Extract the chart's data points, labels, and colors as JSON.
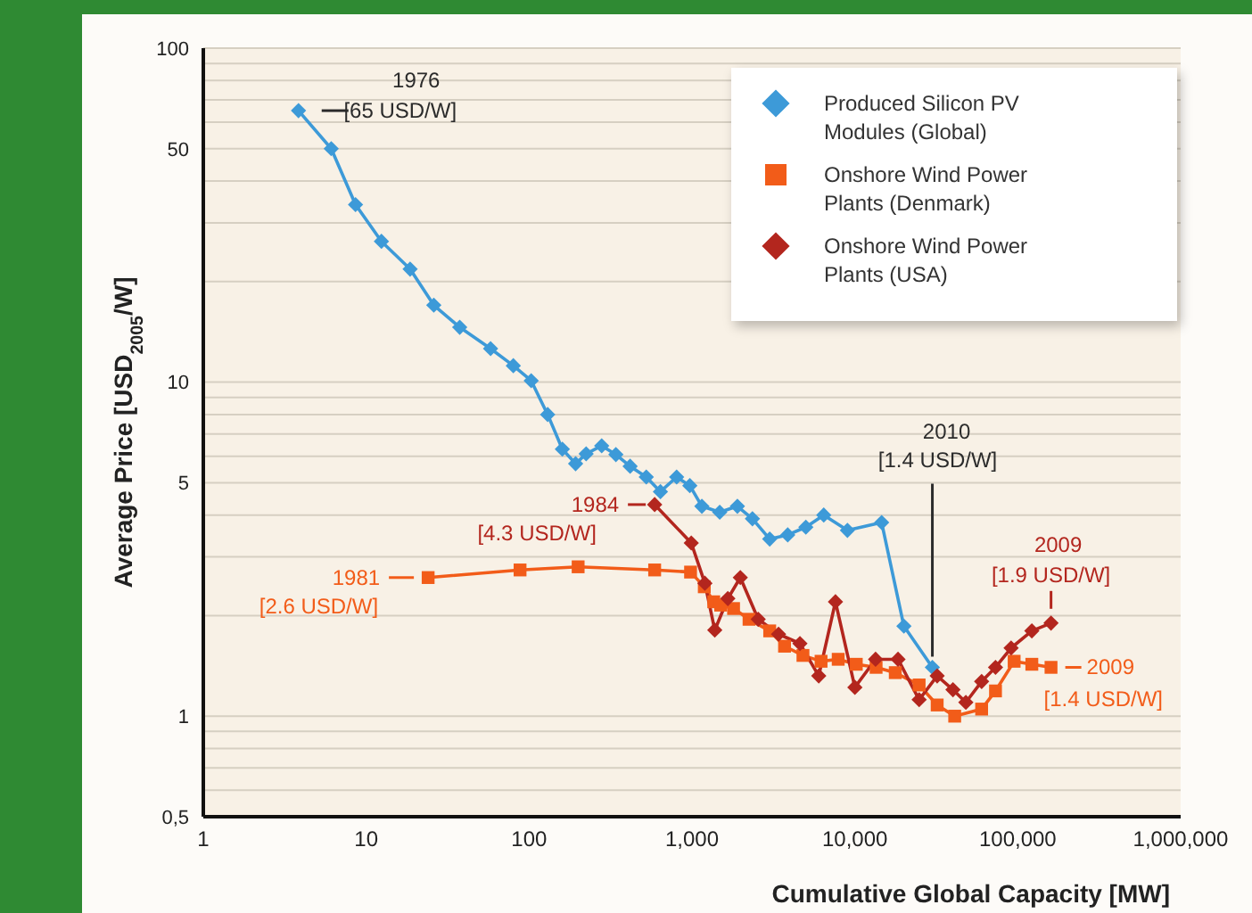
{
  "chart_data": {
    "type": "line",
    "xlabel": "Cumulative Global Capacity [MW]",
    "ylabel": "Average Price [USD$_{2005}$/W]",
    "log": "xy",
    "grid": "y",
    "legend": "top right",
    "xlim": [
      1,
      1000000
    ],
    "xticks": [
      1,
      10,
      100,
      {
        "value": 1000,
        "label": "1,000"
      },
      {
        "value": 10000,
        "label": "10,000"
      },
      {
        "value": 100000,
        "label": "100,000"
      },
      {
        "value": 1000000,
        "label": "1,000,000"
      }
    ],
    "ylim": [
      0.5,
      100
    ],
    "yticks": [
      {
        "value": 0.5,
        "label": "0,5"
      },
      {
        "value": 0.6,
        "label": null
      },
      {
        "value": 0.7,
        "label": null
      },
      {
        "value": 0.8,
        "label": null
      },
      {
        "value": 0.9,
        "label": null
      },
      1,
      {
        "value": 2,
        "label": null
      },
      {
        "value": 3,
        "label": null
      },
      {
        "value": 4,
        "label": null
      },
      5,
      {
        "value": 6,
        "label": null
      },
      {
        "value": 7,
        "label": null
      },
      {
        "value": 8,
        "label": null
      },
      {
        "value": 9,
        "label": null
      },
      10,
      {
        "value": 20,
        "label": null
      },
      {
        "value": 30,
        "label": null
      },
      {
        "value": 40,
        "label": null
      },
      50,
      {
        "value": 60,
        "label": null
      },
      {
        "value": 70,
        "label": null
      },
      {
        "value": 80,
        "label": null
      },
      {
        "value": 90,
        "label": null
      },
      100
    ],
    "series": [
      {
        "name": "Produced Silicon PV Modules (Global)",
        "color": "#3d9ad8",
        "marker": "diamond",
        "x": [
          3.84,
          6.1,
          8.6,
          12.4,
          18.6,
          26,
          37.5,
          58,
          80,
          103,
          130,
          160,
          193,
          224,
          279,
          341,
          417,
          524,
          640,
          805,
          970,
          1150,
          1480,
          1900,
          2350,
          3000,
          3870,
          5000,
          6440,
          9000,
          14600,
          20000,
          29900
        ],
        "values": [
          65,
          50,
          34,
          26.4,
          21.8,
          17,
          14.6,
          12.6,
          11.2,
          10.1,
          8.0,
          6.3,
          5.7,
          6.1,
          6.45,
          6.07,
          5.6,
          5.2,
          4.7,
          5.2,
          4.9,
          4.25,
          4.08,
          4.25,
          3.9,
          3.39,
          3.49,
          3.68,
          4.0,
          3.6,
          3.8,
          1.86,
          1.4
        ]
      },
      {
        "name": "Onshore Wind Power Plants (Denmark)",
        "color": "#f25c19",
        "marker": "square",
        "x": [
          24,
          88,
          200,
          590,
          980,
          1190,
          1360,
          1500,
          1800,
          2240,
          3000,
          3700,
          4800,
          6200,
          7900,
          10200,
          13500,
          17700,
          24800,
          32000,
          41000,
          60000,
          73000,
          95000,
          122000,
          160000
        ],
        "values": [
          2.6,
          2.74,
          2.8,
          2.74,
          2.7,
          2.44,
          2.2,
          2.15,
          2.1,
          1.95,
          1.8,
          1.62,
          1.52,
          1.46,
          1.48,
          1.43,
          1.4,
          1.35,
          1.24,
          1.08,
          1.0,
          1.05,
          1.19,
          1.46,
          1.43,
          1.4
        ]
      },
      {
        "name": "Onshore Wind Power Plants (USA)",
        "color": "#b3261e",
        "marker": "diamond",
        "x": [
          590,
          990,
          1200,
          1380,
          1660,
          1980,
          2550,
          3400,
          4600,
          6000,
          7600,
          10000,
          13400,
          18400,
          24800,
          32000,
          40000,
          48000,
          60000,
          73000,
          91000,
          122000,
          160000
        ],
        "values": [
          4.3,
          3.3,
          2.5,
          1.81,
          2.25,
          2.6,
          1.95,
          1.76,
          1.65,
          1.32,
          2.2,
          1.22,
          1.48,
          1.48,
          1.12,
          1.32,
          1.2,
          1.1,
          1.27,
          1.4,
          1.6,
          1.8,
          1.9
        ]
      }
    ],
    "annotations": [
      {
        "text": "1976\n[65 USD/W]",
        "x": 3.84,
        "y": 65
      },
      {
        "text": "2010\n[1.4 USD/W]",
        "x": 29900,
        "y": 1.4
      },
      {
        "text": "1981\n[2.6 USD/W]",
        "x": 24,
        "y": 2.6
      },
      {
        "text": "1984\n[4.3 USD/W]",
        "x": 590,
        "y": 4.3
      },
      {
        "text": "2009\n[1.9 USD/W]",
        "x": 160000,
        "y": 1.9
      },
      {
        "text": "2009\n[1.4 USD/W]",
        "x": 160000,
        "y": 1.4
      }
    ]
  }
}
